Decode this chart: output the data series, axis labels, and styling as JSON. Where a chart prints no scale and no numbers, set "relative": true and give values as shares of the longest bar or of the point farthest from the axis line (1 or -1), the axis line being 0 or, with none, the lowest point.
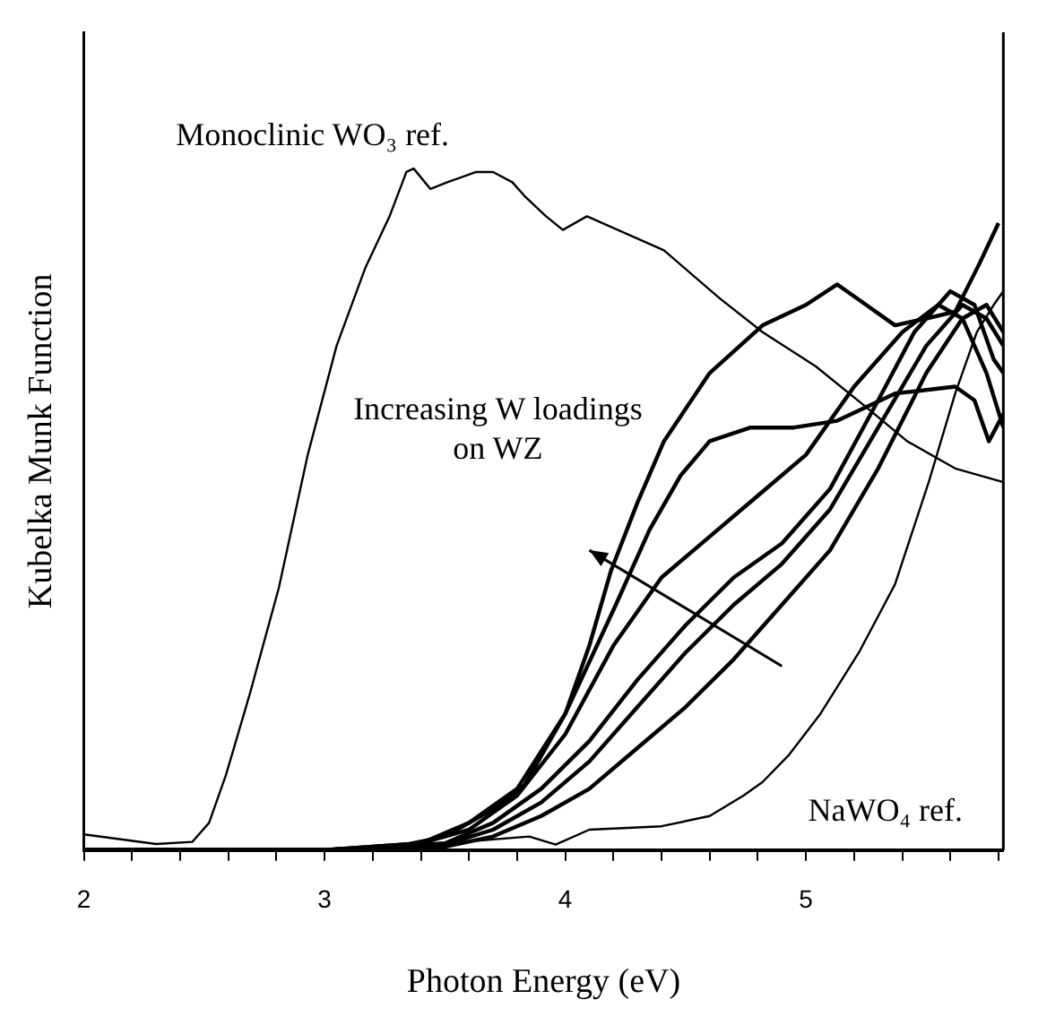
{
  "chart_data": {
    "type": "line",
    "relative": true,
    "xlabel": "Photon Energy (eV)",
    "ylabel": "Kubelka Munk Function",
    "xlim": [
      2,
      5.82
    ],
    "xticks": [
      2,
      {
        "value": 2.2,
        "label": null
      },
      {
        "value": 2.4,
        "label": null
      },
      {
        "value": 2.6,
        "label": null
      },
      {
        "value": 2.8,
        "label": null
      },
      3,
      {
        "value": 3.2,
        "label": null
      },
      {
        "value": 3.4,
        "label": null
      },
      {
        "value": 3.6,
        "label": null
      },
      {
        "value": 3.8,
        "label": null
      },
      4,
      {
        "value": 4.2,
        "label": null
      },
      {
        "value": 4.4,
        "label": null
      },
      {
        "value": 4.6,
        "label": null
      },
      {
        "value": 4.8,
        "label": null
      },
      5,
      {
        "value": 5.2,
        "label": null
      },
      {
        "value": 5.4,
        "label": null
      },
      {
        "value": 5.6,
        "label": null
      },
      {
        "value": 5.8,
        "label": null
      }
    ],
    "marker": "none",
    "line_style": "solid",
    "annotations": [
      "Monoclinic  WO₃ ref.",
      "NaWO₄ ref.",
      "Increasing W loadings on WZ"
    ],
    "series": [
      {
        "color": "#000000",
        "x": [
          2.0,
          2.3,
          2.45,
          2.52,
          2.59,
          2.69,
          2.81,
          2.93,
          3.05,
          3.17,
          3.27,
          3.34,
          3.37,
          3.44,
          3.51,
          3.63,
          3.7,
          3.78,
          3.83,
          3.92,
          3.99,
          4.09,
          4.41,
          4.64,
          4.82,
          5.04,
          5.25,
          5.42,
          5.62,
          5.82
        ],
        "values": [
          0.023,
          0.009,
          0.012,
          0.04,
          0.11,
          0.23,
          0.385,
          0.58,
          0.74,
          0.855,
          0.93,
          0.995,
          1.0,
          0.97,
          0.98,
          0.995,
          0.995,
          0.98,
          0.96,
          0.93,
          0.91,
          0.93,
          0.88,
          0.81,
          0.76,
          0.71,
          0.65,
          0.6,
          0.56,
          0.54
        ]
      },
      {
        "color": "#000000",
        "x": [
          2.0,
          3.0,
          3.5,
          3.85,
          3.96,
          4.1,
          4.4,
          4.6,
          4.74,
          4.82,
          4.93,
          5.06,
          5.22,
          5.37,
          5.51,
          5.62,
          5.71,
          5.78,
          5.82
        ],
        "values": [
          0,
          0,
          0.01,
          0.02,
          0.008,
          0.03,
          0.035,
          0.05,
          0.08,
          0.1,
          0.14,
          0.2,
          0.29,
          0.39,
          0.54,
          0.67,
          0.76,
          0.8,
          0.82
        ]
      },
      {
        "color": "#000000",
        "x": [
          2.0,
          3.0,
          3.3,
          3.5,
          3.7,
          3.83,
          4.0,
          4.1,
          4.19,
          4.3,
          4.41,
          4.6,
          4.82,
          5.0,
          5.13,
          5.25,
          5.37,
          5.5,
          5.62,
          5.72,
          5.8
        ],
        "values": [
          0,
          0,
          0.005,
          0.02,
          0.06,
          0.095,
          0.2,
          0.3,
          0.41,
          0.51,
          0.6,
          0.7,
          0.77,
          0.8,
          0.83,
          0.8,
          0.77,
          0.78,
          0.79,
          0.86,
          0.92
        ]
      },
      {
        "color": "#000000",
        "x": [
          2.0,
          3.0,
          3.4,
          3.6,
          3.8,
          4.0,
          4.21,
          4.35,
          4.48,
          4.6,
          4.77,
          4.95,
          5.13,
          5.37,
          5.62,
          5.7,
          5.76,
          5.82
        ],
        "values": [
          0,
          0,
          0.01,
          0.04,
          0.09,
          0.2,
          0.36,
          0.47,
          0.55,
          0.6,
          0.62,
          0.62,
          0.63,
          0.67,
          0.68,
          0.66,
          0.6,
          0.64
        ]
      },
      {
        "color": "#000000",
        "x": [
          2.0,
          3.0,
          3.4,
          3.6,
          3.8,
          4.0,
          4.2,
          4.4,
          4.6,
          4.8,
          5.0,
          5.2,
          5.4,
          5.55,
          5.65,
          5.75,
          5.82
        ],
        "values": [
          0,
          0,
          0.01,
          0.03,
          0.08,
          0.17,
          0.3,
          0.4,
          0.46,
          0.52,
          0.58,
          0.68,
          0.76,
          0.8,
          0.78,
          0.7,
          0.62
        ]
      },
      {
        "color": "#000000",
        "x": [
          2.0,
          3.0,
          3.5,
          3.7,
          3.9,
          4.1,
          4.3,
          4.5,
          4.7,
          4.9,
          5.1,
          5.3,
          5.45,
          5.6,
          5.7,
          5.78,
          5.82
        ],
        "values": [
          0,
          0,
          0.01,
          0.04,
          0.09,
          0.16,
          0.25,
          0.33,
          0.4,
          0.45,
          0.53,
          0.66,
          0.76,
          0.82,
          0.8,
          0.72,
          0.7
        ]
      },
      {
        "color": "#000000",
        "x": [
          2.0,
          3.0,
          3.5,
          3.7,
          3.9,
          4.1,
          4.3,
          4.5,
          4.7,
          4.9,
          5.1,
          5.3,
          5.5,
          5.65,
          5.75,
          5.82
        ],
        "values": [
          0,
          0,
          0.008,
          0.03,
          0.07,
          0.13,
          0.21,
          0.29,
          0.36,
          0.42,
          0.5,
          0.62,
          0.74,
          0.8,
          0.78,
          0.74
        ]
      },
      {
        "color": "#000000",
        "x": [
          2.0,
          3.0,
          3.5,
          3.7,
          3.9,
          4.1,
          4.3,
          4.5,
          4.7,
          4.9,
          5.1,
          5.3,
          5.5,
          5.65,
          5.75,
          5.82
        ],
        "values": [
          0,
          0,
          0.005,
          0.02,
          0.05,
          0.09,
          0.15,
          0.21,
          0.28,
          0.36,
          0.44,
          0.56,
          0.7,
          0.78,
          0.8,
          0.76
        ]
      }
    ]
  }
}
